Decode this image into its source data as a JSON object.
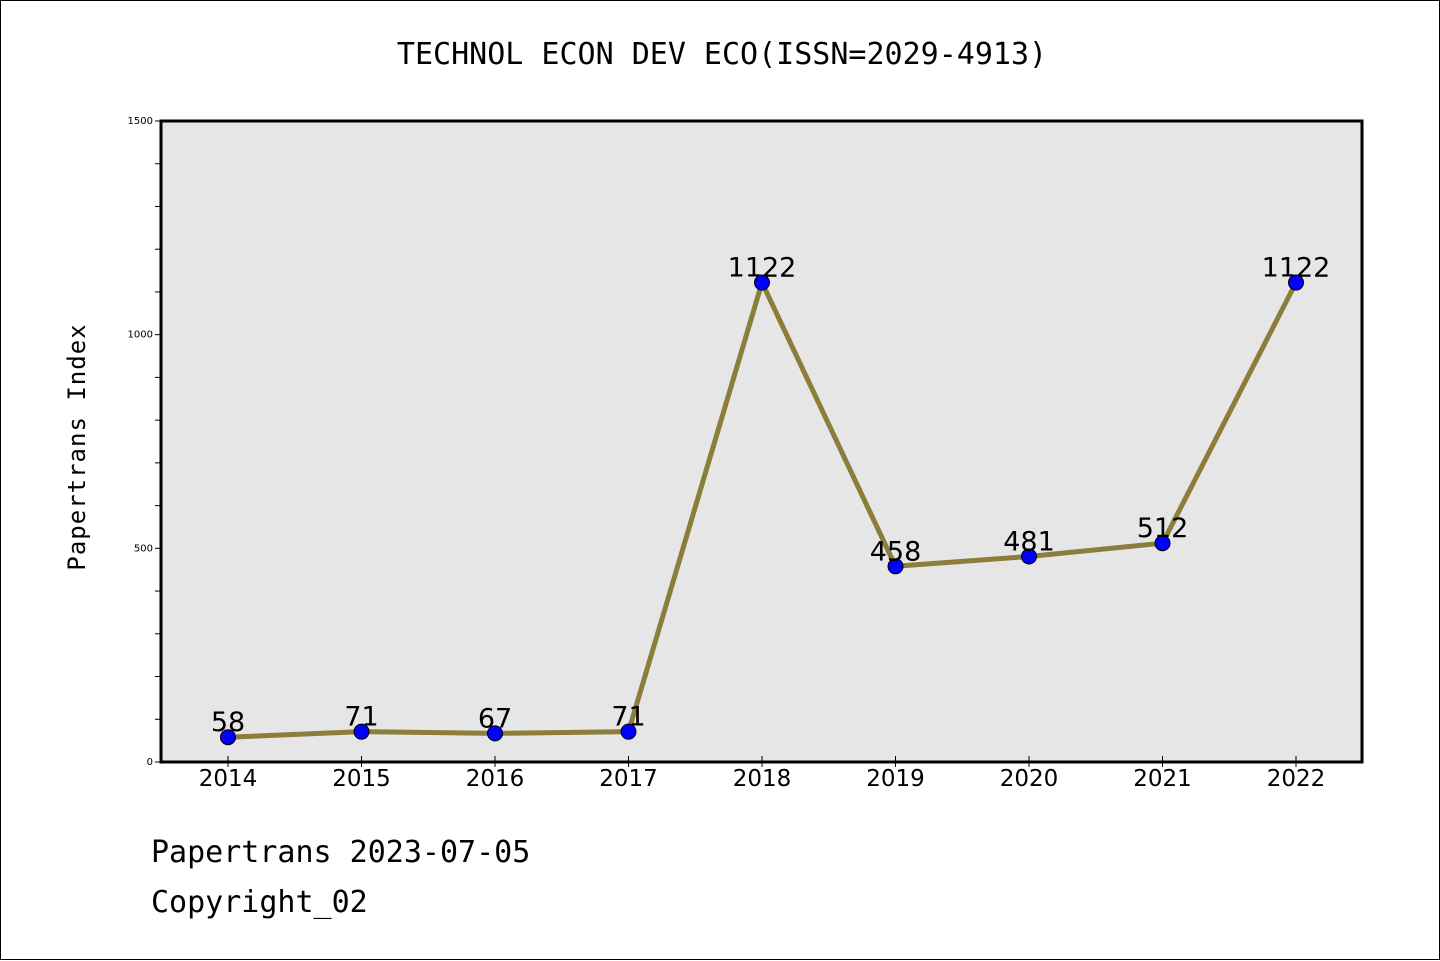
{
  "chart_data": {
    "type": "line",
    "title": "TECHNOL ECON DEV ECO(ISSN=2029-4913)",
    "xlabel": "",
    "ylabel": "Papertrans Index",
    "categories": [
      "2014",
      "2015",
      "2016",
      "2017",
      "2018",
      "2019",
      "2020",
      "2021",
      "2022"
    ],
    "values": [
      58,
      71,
      67,
      71,
      1122,
      458,
      481,
      512,
      1122
    ],
    "data_labels": [
      "58",
      "71",
      "67",
      "71",
      "1122",
      "458",
      "481",
      "512",
      "1122"
    ],
    "ylim": [
      0,
      1500
    ],
    "yticks": [
      0,
      500,
      1000,
      1500
    ],
    "ytick_labels": [
      "0",
      "500",
      "1000",
      "1500"
    ],
    "grid": false,
    "colors": {
      "line": "#8b7d3a",
      "marker": "#0000ff",
      "plot_background": "#e6e6e6"
    }
  },
  "footer": {
    "source": "Papertrans 2023-07-05",
    "copyright": "Copyright_02"
  }
}
